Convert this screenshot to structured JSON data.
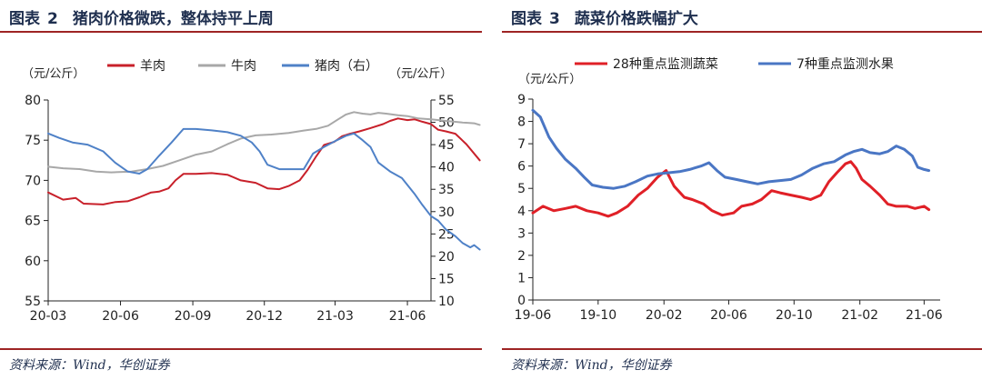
{
  "figures": [
    {
      "id": "left",
      "title_label": "图表",
      "title_number": "2",
      "title_text": "猪肉价格微跌，整体持平上周",
      "source": "资料来源：Wind，华创证券"
    },
    {
      "id": "right",
      "title_label": "图表",
      "title_number": "3",
      "title_text": "蔬菜价格跌幅扩大",
      "source": "资料来源：Wind，华创证券"
    }
  ],
  "chart_data": [
    {
      "type": "line",
      "unit_left": "（元/公斤）",
      "unit_right": "（元/公斤）",
      "x_ticks": [
        "20-03",
        "20-06",
        "20-09",
        "20-12",
        "21-03",
        "21-06"
      ],
      "x_start": "2020-03",
      "x_end": "2021-07",
      "y_left": {
        "min": 55,
        "max": 80,
        "ticks": [
          55,
          60,
          65,
          70,
          75,
          80
        ]
      },
      "y_right": {
        "min": 10,
        "max": 55,
        "ticks": [
          10,
          15,
          20,
          25,
          30,
          35,
          40,
          45,
          50,
          55
        ]
      },
      "legend_position": "top",
      "grid": false,
      "series": [
        {
          "name": "羊肉",
          "axis": "left",
          "color": "#c8202a",
          "points": [
            [
              "2020-03-01",
              68.5
            ],
            [
              "2020-03-20",
              67.6
            ],
            [
              "2020-04-05",
              67.8
            ],
            [
              "2020-04-15",
              67.1
            ],
            [
              "2020-05-10",
              67.0
            ],
            [
              "2020-05-25",
              67.3
            ],
            [
              "2020-06-10",
              67.4
            ],
            [
              "2020-06-25",
              67.9
            ],
            [
              "2020-07-10",
              68.5
            ],
            [
              "2020-07-20",
              68.6
            ],
            [
              "2020-08-01",
              69.0
            ],
            [
              "2020-08-10",
              70.0
            ],
            [
              "2020-08-20",
              70.8
            ],
            [
              "2020-09-05",
              70.8
            ],
            [
              "2020-09-25",
              70.9
            ],
            [
              "2020-10-15",
              70.7
            ],
            [
              "2020-11-01",
              70.0
            ],
            [
              "2020-11-20",
              69.7
            ],
            [
              "2020-12-05",
              69.0
            ],
            [
              "2020-12-20",
              68.9
            ],
            [
              "2021-01-01",
              69.3
            ],
            [
              "2021-01-15",
              70.0
            ],
            [
              "2021-01-25",
              71.3
            ],
            [
              "2021-02-05",
              73.0
            ],
            [
              "2021-02-15",
              74.4
            ],
            [
              "2021-02-28",
              74.8
            ],
            [
              "2021-03-10",
              75.5
            ],
            [
              "2021-03-20",
              75.8
            ],
            [
              "2021-04-01",
              76.1
            ],
            [
              "2021-04-15",
              76.5
            ],
            [
              "2021-05-01",
              77.0
            ],
            [
              "2021-05-10",
              77.4
            ],
            [
              "2021-05-20",
              77.7
            ],
            [
              "2021-06-01",
              77.5
            ],
            [
              "2021-06-10",
              77.6
            ],
            [
              "2021-06-20",
              77.3
            ],
            [
              "2021-07-01",
              77.0
            ],
            [
              "2021-07-10",
              76.3
            ],
            [
              "2021-07-20",
              76.1
            ],
            [
              "2021-08-01",
              75.8
            ],
            [
              "2021-08-15",
              74.5
            ],
            [
              "2021-09-01",
              72.5
            ]
          ]
        },
        {
          "name": "牛肉",
          "axis": "left",
          "color": "#a8a8a8",
          "points": [
            [
              "2020-03-01",
              71.7
            ],
            [
              "2020-03-20",
              71.5
            ],
            [
              "2020-04-10",
              71.4
            ],
            [
              "2020-05-01",
              71.1
            ],
            [
              "2020-05-20",
              71.0
            ],
            [
              "2020-06-15",
              71.1
            ],
            [
              "2020-07-05",
              71.4
            ],
            [
              "2020-07-25",
              71.8
            ],
            [
              "2020-08-15",
              72.5
            ],
            [
              "2020-09-05",
              73.2
            ],
            [
              "2020-09-25",
              73.6
            ],
            [
              "2020-10-15",
              74.5
            ],
            [
              "2020-11-01",
              75.2
            ],
            [
              "2020-11-20",
              75.6
            ],
            [
              "2020-12-10",
              75.7
            ],
            [
              "2021-01-01",
              75.9
            ],
            [
              "2021-01-20",
              76.2
            ],
            [
              "2021-02-05",
              76.4
            ],
            [
              "2021-02-20",
              76.8
            ],
            [
              "2021-03-05",
              77.6
            ],
            [
              "2021-03-15",
              78.2
            ],
            [
              "2021-03-25",
              78.5
            ],
            [
              "2021-04-05",
              78.3
            ],
            [
              "2021-04-15",
              78.2
            ],
            [
              "2021-04-25",
              78.4
            ],
            [
              "2021-05-05",
              78.3
            ],
            [
              "2021-05-20",
              78.1
            ],
            [
              "2021-06-01",
              78.0
            ],
            [
              "2021-06-15",
              77.7
            ],
            [
              "2021-07-01",
              77.6
            ],
            [
              "2021-07-20",
              77.4
            ],
            [
              "2021-08-10",
              77.2
            ],
            [
              "2021-08-25",
              77.1
            ],
            [
              "2021-09-01",
              76.9
            ]
          ]
        },
        {
          "name": "猪肉（右）",
          "axis": "right",
          "color": "#4f81c7",
          "points": [
            [
              "2020-03-01",
              47.5
            ],
            [
              "2020-03-15",
              46.5
            ],
            [
              "2020-04-01",
              45.5
            ],
            [
              "2020-04-20",
              45.0
            ],
            [
              "2020-05-10",
              43.5
            ],
            [
              "2020-05-25",
              41.0
            ],
            [
              "2020-06-10",
              39.0
            ],
            [
              "2020-06-25",
              38.5
            ],
            [
              "2020-07-05",
              39.5
            ],
            [
              "2020-07-20",
              42.5
            ],
            [
              "2020-08-05",
              45.5
            ],
            [
              "2020-08-20",
              48.5
            ],
            [
              "2020-09-05",
              48.5
            ],
            [
              "2020-09-25",
              48.2
            ],
            [
              "2020-10-15",
              47.8
            ],
            [
              "2020-11-01",
              47.0
            ],
            [
              "2020-11-15",
              45.5
            ],
            [
              "2020-11-25",
              43.5
            ],
            [
              "2020-12-05",
              40.5
            ],
            [
              "2020-12-20",
              39.5
            ],
            [
              "2021-01-05",
              39.5
            ],
            [
              "2021-01-20",
              39.5
            ],
            [
              "2021-02-01",
              43.0
            ],
            [
              "2021-02-15",
              44.5
            ],
            [
              "2021-03-01",
              45.8
            ],
            [
              "2021-03-15",
              47.0
            ],
            [
              "2021-03-25",
              47.5
            ],
            [
              "2021-04-05",
              46.0
            ],
            [
              "2021-04-15",
              44.5
            ],
            [
              "2021-04-25",
              41.0
            ],
            [
              "2021-05-10",
              39.0
            ],
            [
              "2021-05-25",
              37.5
            ],
            [
              "2021-06-10",
              34.0
            ],
            [
              "2021-06-20",
              31.5
            ],
            [
              "2021-07-01",
              29.0
            ],
            [
              "2021-07-10",
              28.0
            ],
            [
              "2021-07-20",
              26.0
            ],
            [
              "2021-08-01",
              24.5
            ],
            [
              "2021-08-10",
              23.0
            ],
            [
              "2021-08-20",
              22.0
            ],
            [
              "2021-08-25",
              22.5
            ],
            [
              "2021-09-01",
              21.5
            ]
          ]
        }
      ]
    },
    {
      "type": "line",
      "unit_left": "（元/公斤）",
      "x_ticks": [
        "19-06",
        "19-10",
        "20-02",
        "20-06",
        "20-10",
        "21-02",
        "21-06"
      ],
      "x_start": "2019-06",
      "x_end": "2021-07",
      "y_left": {
        "min": 0,
        "max": 9,
        "ticks": [
          0,
          1,
          2,
          3,
          4,
          5,
          6,
          7,
          8,
          9
        ]
      },
      "legend_position": "top",
      "grid": false,
      "series": [
        {
          "name": "28种重点监测蔬菜",
          "axis": "left",
          "color": "#e02027",
          "points": [
            [
              "2019-06-01",
              3.9
            ],
            [
              "2019-06-20",
              4.2
            ],
            [
              "2019-07-10",
              4.0
            ],
            [
              "2019-08-01",
              4.1
            ],
            [
              "2019-08-20",
              4.2
            ],
            [
              "2019-09-10",
              4.0
            ],
            [
              "2019-10-01",
              3.9
            ],
            [
              "2019-10-20",
              3.75
            ],
            [
              "2019-11-05",
              3.9
            ],
            [
              "2019-11-25",
              4.2
            ],
            [
              "2019-12-15",
              4.7
            ],
            [
              "2020-01-01",
              5.0
            ],
            [
              "2020-01-20",
              5.5
            ],
            [
              "2020-02-05",
              5.8
            ],
            [
              "2020-02-20",
              5.1
            ],
            [
              "2020-03-10",
              4.6
            ],
            [
              "2020-03-25",
              4.5
            ],
            [
              "2020-04-15",
              4.3
            ],
            [
              "2020-05-01",
              4.0
            ],
            [
              "2020-05-20",
              3.8
            ],
            [
              "2020-06-10",
              3.9
            ],
            [
              "2020-06-25",
              4.2
            ],
            [
              "2020-07-15",
              4.3
            ],
            [
              "2020-08-01",
              4.5
            ],
            [
              "2020-08-20",
              4.9
            ],
            [
              "2020-09-05",
              4.8
            ],
            [
              "2020-09-25",
              4.7
            ],
            [
              "2020-10-15",
              4.6
            ],
            [
              "2020-11-01",
              4.5
            ],
            [
              "2020-11-20",
              4.7
            ],
            [
              "2020-12-05",
              5.3
            ],
            [
              "2020-12-20",
              5.7
            ],
            [
              "2021-01-05",
              6.1
            ],
            [
              "2021-01-15",
              6.2
            ],
            [
              "2021-01-25",
              5.9
            ],
            [
              "2021-02-05",
              5.4
            ],
            [
              "2021-02-20",
              5.1
            ],
            [
              "2021-03-10",
              4.7
            ],
            [
              "2021-03-25",
              4.3
            ],
            [
              "2021-04-10",
              4.2
            ],
            [
              "2021-05-01",
              4.2
            ],
            [
              "2021-05-15",
              4.1
            ],
            [
              "2021-06-01",
              4.2
            ],
            [
              "2021-06-10",
              4.05
            ]
          ]
        },
        {
          "name": "7种重点监测水果",
          "axis": "left",
          "color": "#4a76c4",
          "points": [
            [
              "2019-06-01",
              8.5
            ],
            [
              "2019-06-15",
              8.2
            ],
            [
              "2019-07-01",
              7.3
            ],
            [
              "2019-07-15",
              6.8
            ],
            [
              "2019-08-01",
              6.3
            ],
            [
              "2019-08-20",
              5.9
            ],
            [
              "2019-09-05",
              5.5
            ],
            [
              "2019-09-20",
              5.15
            ],
            [
              "2019-10-10",
              5.05
            ],
            [
              "2019-10-30",
              5.0
            ],
            [
              "2019-11-20",
              5.1
            ],
            [
              "2019-12-10",
              5.3
            ],
            [
              "2020-01-01",
              5.55
            ],
            [
              "2020-01-20",
              5.65
            ],
            [
              "2020-02-10",
              5.7
            ],
            [
              "2020-03-01",
              5.75
            ],
            [
              "2020-03-20",
              5.85
            ],
            [
              "2020-04-10",
              6.0
            ],
            [
              "2020-04-25",
              6.15
            ],
            [
              "2020-05-10",
              5.8
            ],
            [
              "2020-05-25",
              5.5
            ],
            [
              "2020-06-15",
              5.4
            ],
            [
              "2020-07-05",
              5.3
            ],
            [
              "2020-07-25",
              5.2
            ],
            [
              "2020-08-15",
              5.3
            ],
            [
              "2020-09-05",
              5.35
            ],
            [
              "2020-09-25",
              5.4
            ],
            [
              "2020-10-15",
              5.6
            ],
            [
              "2020-11-05",
              5.9
            ],
            [
              "2020-11-25",
              6.1
            ],
            [
              "2020-12-15",
              6.2
            ],
            [
              "2021-01-05",
              6.5
            ],
            [
              "2021-01-20",
              6.65
            ],
            [
              "2021-02-05",
              6.75
            ],
            [
              "2021-02-20",
              6.6
            ],
            [
              "2021-03-10",
              6.55
            ],
            [
              "2021-03-25",
              6.65
            ],
            [
              "2021-04-10",
              6.9
            ],
            [
              "2021-04-25",
              6.75
            ],
            [
              "2021-05-10",
              6.45
            ],
            [
              "2021-05-20",
              5.95
            ],
            [
              "2021-06-01",
              5.85
            ],
            [
              "2021-06-10",
              5.8
            ]
          ]
        }
      ]
    }
  ]
}
